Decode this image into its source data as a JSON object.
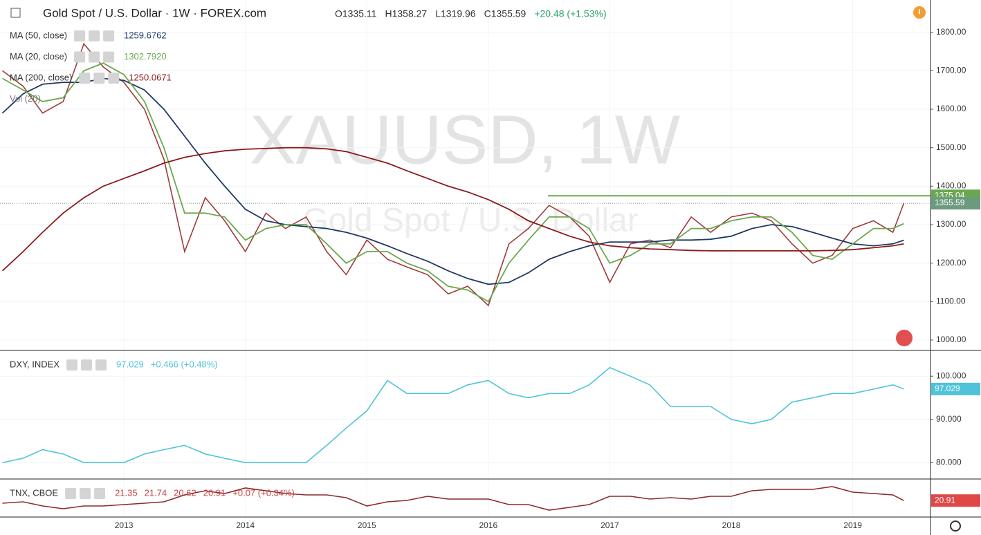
{
  "header": {
    "title": "Gold Spot / U.S. Dollar · 1W · FOREX.com",
    "ohlc": [
      "O1335.11",
      "H1358.27",
      "L1319.96",
      "C1355.59"
    ],
    "change": "+20.48 (+1.53%)"
  },
  "chart_data": [
    {
      "type": "line",
      "watermark": "XAUUSD, 1W",
      "x": [
        2012.0,
        2012.17,
        2012.33,
        2012.5,
        2012.67,
        2012.83,
        2013.0,
        2013.17,
        2013.33,
        2013.5,
        2013.67,
        2013.83,
        2014.0,
        2014.17,
        2014.33,
        2014.5,
        2014.67,
        2014.83,
        2015.0,
        2015.17,
        2015.33,
        2015.5,
        2015.67,
        2015.83,
        2016.0,
        2016.17,
        2016.33,
        2016.5,
        2016.67,
        2016.83,
        2017.0,
        2017.17,
        2017.33,
        2017.5,
        2017.67,
        2017.83,
        2018.0,
        2018.17,
        2018.33,
        2018.5,
        2018.67,
        2018.83,
        2019.0,
        2019.17,
        2019.33,
        2019.42
      ],
      "xlim": [
        2011.98,
        2019.64
      ],
      "ylim": [
        973,
        1884
      ],
      "yticks": [
        {
          "value": 1000,
          "label": "1000.00"
        },
        {
          "value": 1100,
          "label": "1100.00"
        },
        {
          "value": 1200,
          "label": "1200.00"
        },
        {
          "value": 1300,
          "label": "1300.00"
        },
        {
          "value": 1400,
          "label": "1400.00"
        },
        {
          "value": 1500,
          "label": "1500.00"
        },
        {
          "value": 1600,
          "label": "1600.00"
        },
        {
          "value": 1700,
          "label": "1700.00"
        },
        {
          "value": 1800,
          "label": "1800.00"
        }
      ],
      "grid": true,
      "series": [
        {
          "name": "Gold Spot / U.S. Dollar",
          "color": "#9e3b3b",
          "values": [
            1700,
            1660,
            1590,
            1620,
            1770,
            1710,
            1670,
            1600,
            1470,
            1230,
            1370,
            1310,
            1230,
            1330,
            1290,
            1320,
            1230,
            1170,
            1260,
            1210,
            1190,
            1170,
            1120,
            1140,
            1090,
            1250,
            1290,
            1350,
            1320,
            1270,
            1150,
            1250,
            1260,
            1240,
            1320,
            1280,
            1320,
            1330,
            1310,
            1250,
            1200,
            1220,
            1290,
            1310,
            1280,
            1355.59
          ]
        },
        {
          "name": "MA (50, close)",
          "color": "#1f3864",
          "legend_values": [
            "1259.6762"
          ],
          "values": [
            1590,
            1640,
            1665,
            1670,
            1670,
            1680,
            1675,
            1650,
            1600,
            1530,
            1460,
            1400,
            1340,
            1310,
            1300,
            1295,
            1290,
            1280,
            1265,
            1245,
            1225,
            1205,
            1180,
            1160,
            1145,
            1150,
            1175,
            1210,
            1230,
            1245,
            1255,
            1255,
            1255,
            1260,
            1260,
            1262,
            1270,
            1290,
            1300,
            1295,
            1280,
            1265,
            1250,
            1245,
            1250,
            1259.6762
          ]
        },
        {
          "name": "MA (20, close)",
          "color": "#6aa84f",
          "legend_values": [
            "1302.7920"
          ],
          "values": [
            1680,
            1650,
            1620,
            1630,
            1700,
            1720,
            1690,
            1620,
            1500,
            1330,
            1330,
            1320,
            1260,
            1290,
            1300,
            1300,
            1250,
            1200,
            1230,
            1230,
            1200,
            1180,
            1140,
            1130,
            1100,
            1200,
            1260,
            1320,
            1320,
            1290,
            1200,
            1220,
            1250,
            1250,
            1290,
            1290,
            1310,
            1320,
            1320,
            1280,
            1220,
            1210,
            1250,
            1290,
            1290,
            1302.792
          ]
        },
        {
          "name": "MA (200, close)",
          "color": "#8b1a1a",
          "legend_values": [
            "1250.0671"
          ],
          "values": [
            1180,
            1230,
            1280,
            1330,
            1370,
            1400,
            1420,
            1440,
            1460,
            1475,
            1485,
            1492,
            1496,
            1498,
            1500,
            1500,
            1497,
            1490,
            1475,
            1460,
            1440,
            1420,
            1400,
            1385,
            1365,
            1340,
            1310,
            1290,
            1270,
            1255,
            1245,
            1240,
            1237,
            1235,
            1233,
            1232,
            1232,
            1232,
            1232,
            1232,
            1232,
            1233,
            1235,
            1240,
            1245,
            1250.0671
          ]
        }
      ],
      "extra_legend": "Vol (20)",
      "resistance": {
        "value": 1375.04,
        "from": 2016.49,
        "color": "#6aa84f"
      },
      "last_label": {
        "value": 1355.59,
        "color": "#6b9a7f"
      }
    },
    {
      "type": "line",
      "x": [
        2012.0,
        2012.17,
        2012.33,
        2012.5,
        2012.67,
        2012.83,
        2013.0,
        2013.17,
        2013.33,
        2013.5,
        2013.67,
        2013.83,
        2014.0,
        2014.17,
        2014.33,
        2014.5,
        2014.67,
        2014.83,
        2015.0,
        2015.17,
        2015.33,
        2015.5,
        2015.67,
        2015.83,
        2016.0,
        2016.17,
        2016.33,
        2016.5,
        2016.67,
        2016.83,
        2017.0,
        2017.17,
        2017.33,
        2017.5,
        2017.67,
        2017.83,
        2018.0,
        2018.17,
        2018.33,
        2018.5,
        2018.67,
        2018.83,
        2019.0,
        2019.17,
        2019.33,
        2019.42
      ],
      "xlim": [
        2011.98,
        2019.64
      ],
      "ylim": [
        76.2,
        105.8
      ],
      "yticks": [
        {
          "value": 80,
          "label": "80.000"
        },
        {
          "value": 90,
          "label": "90.000"
        },
        {
          "value": 100,
          "label": "100.000"
        }
      ],
      "grid": true,
      "series": [
        {
          "name": "DXY, INDEX",
          "color": "#4fc3d9",
          "legend_values": [
            "97.029",
            "+0.466 (+0.48%)"
          ],
          "values": [
            80,
            81,
            83,
            82,
            80,
            80,
            80,
            82,
            83,
            84,
            82,
            81,
            80,
            80,
            80,
            80,
            84,
            88,
            92,
            99,
            96,
            96,
            96,
            98,
            99,
            96,
            95,
            96,
            96,
            98,
            102,
            100,
            98,
            93,
            93,
            93,
            90,
            89,
            90,
            94,
            95,
            96,
            96,
            97,
            98,
            97.029
          ]
        }
      ],
      "last_label": {
        "value": 97.029,
        "color": "#4fc3d9"
      }
    },
    {
      "type": "line",
      "x": [
        2012.0,
        2012.17,
        2012.33,
        2012.5,
        2012.67,
        2012.83,
        2013.0,
        2013.17,
        2013.33,
        2013.5,
        2013.67,
        2013.83,
        2014.0,
        2014.17,
        2014.33,
        2014.5,
        2014.67,
        2014.83,
        2015.0,
        2015.17,
        2015.33,
        2015.5,
        2015.67,
        2015.83,
        2016.0,
        2016.17,
        2016.33,
        2016.5,
        2016.67,
        2016.83,
        2017.0,
        2017.17,
        2017.33,
        2017.5,
        2017.67,
        2017.83,
        2018.0,
        2018.17,
        2018.33,
        2018.5,
        2018.67,
        2018.83,
        2019.0,
        2019.17,
        2019.33,
        2019.42
      ],
      "xlim": [
        2011.98,
        2019.64
      ],
      "ylim": [
        9,
        36
      ],
      "xticks": [
        2013,
        2014,
        2015,
        2016,
        2017,
        2018,
        2019
      ],
      "series": [
        {
          "name": "TNX, CBOE",
          "color": "#8b2a2a",
          "legend_values": [
            "21.35",
            "21.74",
            "20.62",
            "20.91",
            "+0.07 (+0.34%)"
          ],
          "values": [
            19,
            20,
            17,
            15,
            17,
            17,
            18,
            19,
            20,
            25,
            28,
            26,
            30,
            28,
            26,
            25,
            25,
            23,
            17,
            20,
            21,
            24,
            22,
            22,
            22,
            18,
            18,
            14,
            16,
            18,
            24,
            24,
            22,
            23,
            22,
            24,
            24,
            28,
            29,
            29,
            29,
            31,
            27,
            26,
            25,
            20.91
          ]
        }
      ],
      "last_label": {
        "value": 20.91,
        "color": "#e04848"
      }
    }
  ]
}
